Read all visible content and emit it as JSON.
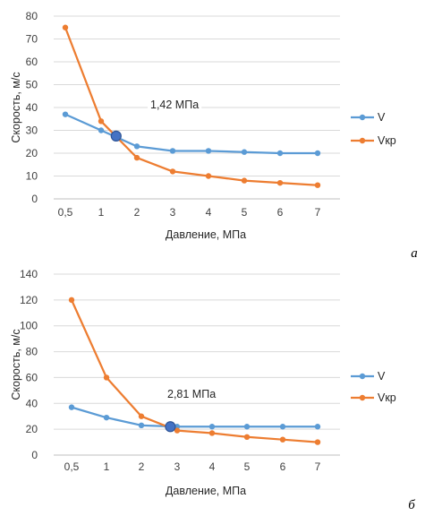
{
  "chart_data": [
    {
      "type": "line",
      "panel_label": "а",
      "categories": [
        "0,5",
        "1",
        "2",
        "3",
        "4",
        "5",
        "6",
        "7"
      ],
      "series": [
        {
          "name": "V",
          "color": "#5B9BD5",
          "values": [
            37,
            30,
            23,
            21,
            21,
            20.5,
            20,
            20
          ]
        },
        {
          "name": "Vкр",
          "color": "#ED7D31",
          "values": [
            75,
            34,
            18,
            12,
            10,
            8,
            7,
            6
          ]
        }
      ],
      "intersection": {
        "x": 1.42,
        "y": 27.5,
        "label": "1,42 МПа",
        "color": "#4472C4"
      },
      "xlabel": "Давление, МПа",
      "ylabel": "Скорость, м/с",
      "ylim": [
        0,
        80
      ],
      "yticks": [
        "0",
        "10",
        "20",
        "30",
        "40",
        "50",
        "60",
        "70",
        "80"
      ],
      "legend_position": "right",
      "grid": "horizontal"
    },
    {
      "type": "line",
      "panel_label": "б",
      "categories": [
        "0,5",
        "1",
        "2",
        "3",
        "4",
        "5",
        "6",
        "7"
      ],
      "series": [
        {
          "name": "V",
          "color": "#5B9BD5",
          "values": [
            37,
            29,
            23,
            22,
            22,
            22,
            22,
            22
          ]
        },
        {
          "name": "Vкр",
          "color": "#ED7D31",
          "values": [
            120,
            60,
            30,
            19,
            17,
            14,
            12,
            10
          ]
        }
      ],
      "intersection": {
        "x": 2.81,
        "y": 22,
        "label": "2,81 МПа",
        "color": "#4472C4"
      },
      "xlabel": "Давление, МПа",
      "ylabel": "Скорость, м/с",
      "ylim": [
        0,
        140
      ],
      "yticks": [
        "0",
        "20",
        "40",
        "60",
        "80",
        "100",
        "120",
        "140"
      ],
      "legend_position": "right",
      "grid": "horizontal"
    }
  ]
}
